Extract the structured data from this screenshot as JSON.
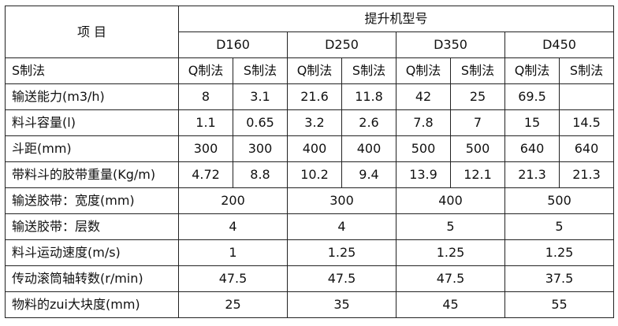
{
  "header": {
    "item_label": "项 目",
    "model_label": "提升机型号",
    "models": [
      "D160",
      "D250",
      "D350",
      "D450"
    ],
    "method_row_label": "S制法",
    "methods": [
      "Q制法",
      "S制法",
      "Q制法",
      "S制法",
      "Q制法",
      "S制法",
      "Q制法",
      "S制法"
    ]
  },
  "rows_split": [
    {
      "label": "输送能力(m3/h)",
      "values": [
        "8",
        "3.1",
        "21.6",
        "11.8",
        "42",
        "25",
        "69.5",
        ""
      ]
    },
    {
      "label": "料斗容量(l)",
      "values": [
        "1.1",
        "0.65",
        "3.2",
        "2.6",
        "7.8",
        "7",
        "15",
        "14.5"
      ]
    },
    {
      "label": "斗距(mm)",
      "values": [
        "300",
        "300",
        "400",
        "400",
        "500",
        "500",
        "640",
        "640"
      ]
    },
    {
      "label": "带料斗的胶带重量(Kg/m)",
      "values": [
        "4.72",
        "8.8",
        "10.2",
        "9.4",
        "13.9",
        "12.1",
        "21.3",
        "21.3"
      ]
    }
  ],
  "rows_merged": [
    {
      "label": "输送胶带：宽度(mm)",
      "values": [
        "200",
        "300",
        "400",
        "500"
      ]
    },
    {
      "label": "输送胶带：层数",
      "values": [
        "4",
        "4",
        "5",
        "5"
      ]
    },
    {
      "label": "料斗运动速度(m/s)",
      "values": [
        "1",
        "1.25",
        "1.25",
        "1.25"
      ]
    },
    {
      "label": "传动滚筒轴转数(r/min)",
      "values": [
        "47.5",
        "47.5",
        "47.5",
        "37.5"
      ]
    },
    {
      "label": "物料的zui大块度(mm)",
      "values": [
        "25",
        "35",
        "45",
        "55"
      ]
    }
  ]
}
